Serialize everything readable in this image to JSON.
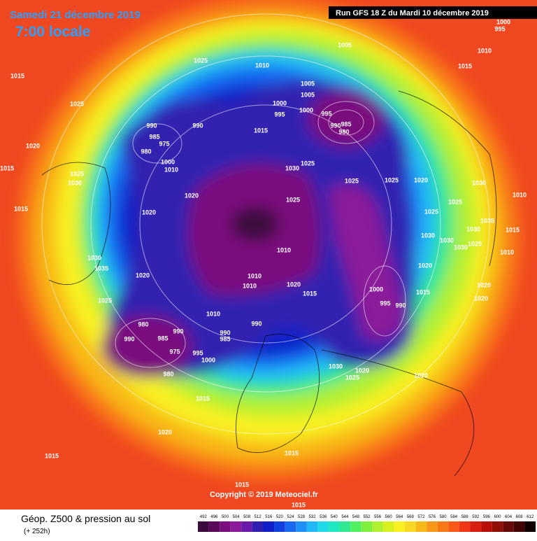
{
  "header": {
    "date": "Samedi 21 décembre 2019",
    "time": "7:00 locale",
    "run": "Run GFS 18 Z du Mardi 10 décembre 2019"
  },
  "footer": {
    "title": "Géop. Z500 & pression au sol",
    "lead": "(+ 252h)",
    "copyright": "Copyright © 2019 Meteociel.fr"
  },
  "scale": {
    "ticks": [
      492,
      496,
      500,
      504,
      508,
      512,
      516,
      520,
      524,
      528,
      532,
      536,
      540,
      544,
      548,
      552,
      556,
      560,
      564,
      568,
      572,
      576,
      580,
      584,
      588,
      592,
      596,
      600,
      604,
      608,
      612
    ],
    "colors": [
      "#3c0a3c",
      "#5a0a5a",
      "#7a0e7e",
      "#8b1a9a",
      "#6a1aa8",
      "#3020b0",
      "#1020c8",
      "#1040e0",
      "#1868f0",
      "#1e90f8",
      "#20b8f8",
      "#20d8e8",
      "#20e8c0",
      "#30e890",
      "#50f060",
      "#80f040",
      "#b0f030",
      "#d8f020",
      "#f8f020",
      "#f8d820",
      "#f8b818",
      "#f89818",
      "#f87818",
      "#f85818",
      "#f03818",
      "#d82010",
      "#b81008",
      "#901008",
      "#680808",
      "#400404",
      "#100000"
    ]
  },
  "isobar_labels": [
    "1025",
    "1010",
    "1005",
    "1010",
    "1015",
    "1015",
    "1025",
    "1005",
    "1005",
    "1000",
    "995",
    "1000",
    "995",
    "990",
    "985",
    "980",
    "990",
    "990",
    "985",
    "975",
    "980",
    "1000",
    "1010",
    "1020",
    "1015",
    "1030",
    "1025",
    "1025",
    "1030",
    "1025",
    "1025",
    "1020",
    "1030",
    "1015",
    "1020",
    "1025",
    "1025",
    "1010",
    "1015",
    "1020",
    "1025",
    "1035",
    "1030",
    "1015",
    "1030",
    "1030",
    "1030",
    "1025",
    "1010",
    "1010",
    "1030",
    "1035",
    "1020",
    "1010",
    "1010",
    "1020",
    "1015",
    "1020",
    "1020",
    "1000",
    "1015",
    "995",
    "990",
    "1020",
    "1025",
    "1010",
    "990",
    "980",
    "990",
    "990",
    "985",
    "990",
    "985",
    "975",
    "995",
    "1000",
    "1030",
    "1020",
    "1025",
    "1020",
    "980",
    "1015",
    "1020",
    "1015",
    "1015",
    "1015",
    "1015",
    "1000",
    "995"
  ]
}
